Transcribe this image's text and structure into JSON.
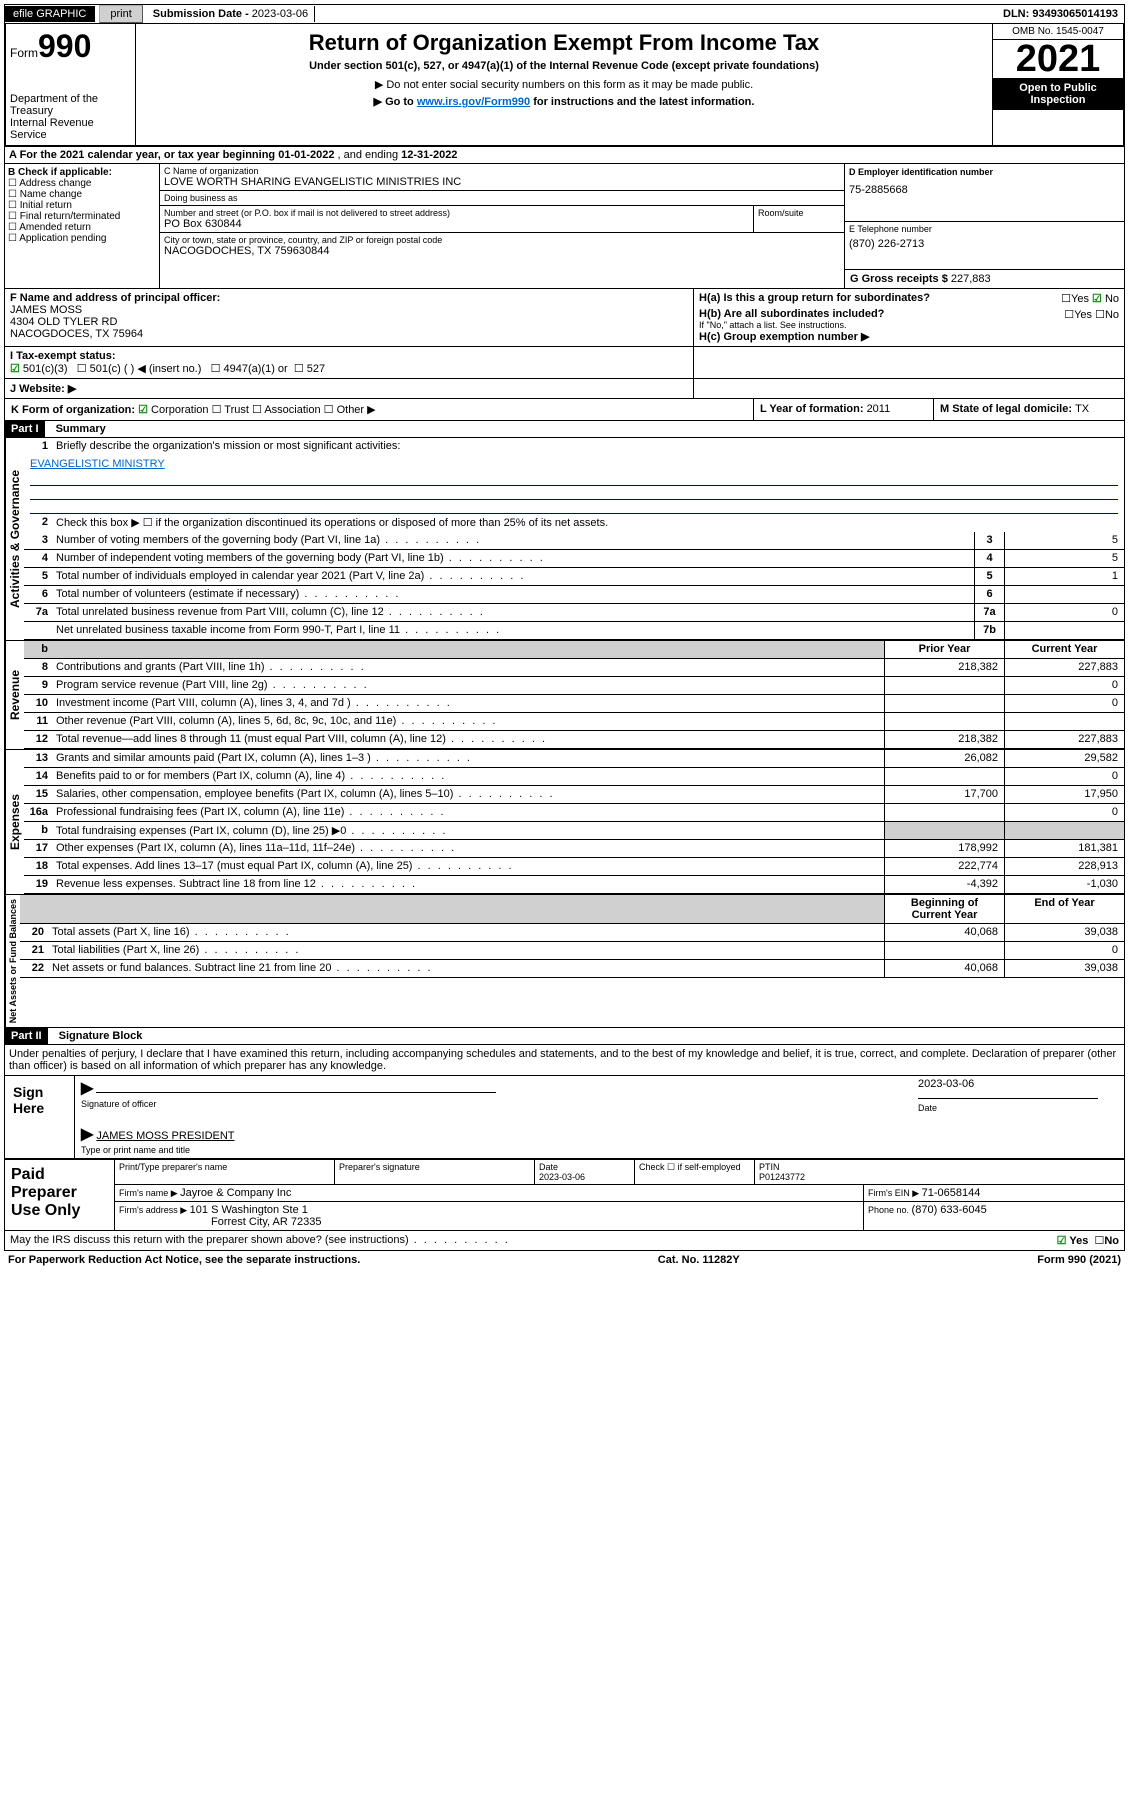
{
  "topbar": {
    "efile": "efile GRAPHIC",
    "print": "print",
    "sub_label": "Submission Date - ",
    "sub_date": "2023-03-06",
    "dln": "DLN: 93493065014193"
  },
  "head": {
    "form_word": "Form",
    "form_no": "990",
    "dept": "Department of the Treasury",
    "irs": "Internal Revenue Service",
    "title": "Return of Organization Exempt From Income Tax",
    "subtitle": "Under section 501(c), 527, or 4947(a)(1) of the Internal Revenue Code (except private foundations)",
    "note1": "▶ Do not enter social security numbers on this form as it may be made public.",
    "note2_a": "▶ Go to ",
    "note2_link": "www.irs.gov/Form990",
    "note2_b": " for instructions and the latest information.",
    "omb": "OMB No. 1545-0047",
    "year": "2021",
    "inspection": "Open to Public Inspection"
  },
  "period": {
    "text_a": "A For the 2021 calendar year, or tax year beginning ",
    "begin": "01-01-2022",
    "text_b": " , and ending ",
    "end": "12-31-2022"
  },
  "sectionB": {
    "header": "B Check if applicable:",
    "opts": [
      "Address change",
      "Name change",
      "Initial return",
      "Final return/terminated",
      "Amended return",
      "Application pending"
    ]
  },
  "sectionC": {
    "lbl_name": "C Name of organization",
    "org": "LOVE WORTH SHARING EVANGELISTIC MINISTRIES INC",
    "dba_lbl": "Doing business as",
    "dba": "",
    "addr_lbl": "Number and street (or P.O. box if mail is not delivered to street address)",
    "room_lbl": "Room/suite",
    "addr": "PO Box 630844",
    "city_lbl": "City or town, state or province, country, and ZIP or foreign postal code",
    "city": "NACOGDOCHES, TX  759630844"
  },
  "sectionD": {
    "lbl": "D Employer identification number",
    "val": "75-2885668"
  },
  "sectionE": {
    "lbl": "E Telephone number",
    "val": "(870) 226-2713"
  },
  "sectionG": {
    "lbl": "G Gross receipts $ ",
    "val": "227,883"
  },
  "sectionF": {
    "lbl": "F Name and address of principal officer:",
    "name": "JAMES MOSS",
    "addr1": "4304 OLD TYLER RD",
    "addr2": "NACOGDOCES, TX  75964"
  },
  "sectionH": {
    "h_a": "H(a)  Is this a group return for subordinates?",
    "h_b": "H(b)  Are all subordinates included?",
    "h_b_note": "If \"No,\" attach a list. See instructions.",
    "h_c": "H(c)  Group exemption number ▶",
    "yes": "Yes",
    "no": "No"
  },
  "sectionI": {
    "lbl": "I   Tax-exempt status:",
    "o1": "501(c)(3)",
    "o2": "501(c) (  ) ◀ (insert no.)",
    "o3": "4947(a)(1) or",
    "o4": "527"
  },
  "sectionJ": {
    "lbl": "J   Website: ▶"
  },
  "sectionK": {
    "lbl": "K Form of organization:",
    "o1": "Corporation",
    "o2": "Trust",
    "o3": "Association",
    "o4": "Other ▶"
  },
  "sectionL": {
    "lbl": "L Year of formation: ",
    "val": "2011"
  },
  "sectionM": {
    "lbl": "M State of legal domicile: ",
    "val": "TX"
  },
  "part1": {
    "bar": "Part I",
    "title": "Summary",
    "q1": "Briefly describe the organization's mission or most significant activities:",
    "mission": "EVANGELISTIC MINISTRY",
    "q2": "Check this box ▶ ☐  if the organization discontinued its operations or disposed of more than 25% of its net assets.",
    "col_prior": "Prior Year",
    "col_curr": "Current Year",
    "col_begin": "Beginning of Current Year",
    "col_end": "End of Year"
  },
  "side": {
    "s1": "Activities & Governance",
    "s2": "Revenue",
    "s3": "Expenses",
    "s4": "Net Assets or Fund Balances"
  },
  "lines_gov": [
    {
      "n": "3",
      "t": "Number of voting members of the governing body (Part VI, line 1a)",
      "box": "3",
      "v": "5"
    },
    {
      "n": "4",
      "t": "Number of independent voting members of the governing body (Part VI, line 1b)",
      "box": "4",
      "v": "5"
    },
    {
      "n": "5",
      "t": "Total number of individuals employed in calendar year 2021 (Part V, line 2a)",
      "box": "5",
      "v": "1"
    },
    {
      "n": "6",
      "t": "Total number of volunteers (estimate if necessary)",
      "box": "6",
      "v": ""
    },
    {
      "n": "7a",
      "t": "Total unrelated business revenue from Part VIII, column (C), line 12",
      "box": "7a",
      "v": "0"
    },
    {
      "n": "",
      "t": "Net unrelated business taxable income from Form 990-T, Part I, line 11",
      "box": "7b",
      "v": ""
    }
  ],
  "lines_rev": [
    {
      "n": "8",
      "t": "Contributions and grants (Part VIII, line 1h)",
      "p": "218,382",
      "c": "227,883"
    },
    {
      "n": "9",
      "t": "Program service revenue (Part VIII, line 2g)",
      "p": "",
      "c": "0"
    },
    {
      "n": "10",
      "t": "Investment income (Part VIII, column (A), lines 3, 4, and 7d )",
      "p": "",
      "c": "0"
    },
    {
      "n": "11",
      "t": "Other revenue (Part VIII, column (A), lines 5, 6d, 8c, 9c, 10c, and 11e)",
      "p": "",
      "c": ""
    },
    {
      "n": "12",
      "t": "Total revenue—add lines 8 through 11 (must equal Part VIII, column (A), line 12)",
      "p": "218,382",
      "c": "227,883"
    }
  ],
  "lines_exp": [
    {
      "n": "13",
      "t": "Grants and similar amounts paid (Part IX, column (A), lines 1–3 )",
      "p": "26,082",
      "c": "29,582"
    },
    {
      "n": "14",
      "t": "Benefits paid to or for members (Part IX, column (A), line 4)",
      "p": "",
      "c": "0"
    },
    {
      "n": "15",
      "t": "Salaries, other compensation, employee benefits (Part IX, column (A), lines 5–10)",
      "p": "17,700",
      "c": "17,950"
    },
    {
      "n": "16a",
      "t": "Professional fundraising fees (Part IX, column (A), line 11e)",
      "p": "",
      "c": "0"
    },
    {
      "n": "b",
      "t": "Total fundraising expenses (Part IX, column (D), line 25) ▶0",
      "p": "__GRAY__",
      "c": "__GRAY__"
    },
    {
      "n": "17",
      "t": "Other expenses (Part IX, column (A), lines 11a–11d, 11f–24e)",
      "p": "178,992",
      "c": "181,381"
    },
    {
      "n": "18",
      "t": "Total expenses. Add lines 13–17 (must equal Part IX, column (A), line 25)",
      "p": "222,774",
      "c": "228,913"
    },
    {
      "n": "19",
      "t": "Revenue less expenses. Subtract line 18 from line 12",
      "p": "-4,392",
      "c": "-1,030"
    }
  ],
  "lines_net": [
    {
      "n": "20",
      "t": "Total assets (Part X, line 16)",
      "p": "40,068",
      "c": "39,038"
    },
    {
      "n": "21",
      "t": "Total liabilities (Part X, line 26)",
      "p": "",
      "c": "0"
    },
    {
      "n": "22",
      "t": "Net assets or fund balances. Subtract line 21 from line 20",
      "p": "40,068",
      "c": "39,038"
    }
  ],
  "part2": {
    "bar": "Part II",
    "title": "Signature Block",
    "decl": "Under penalties of perjury, I declare that I have examined this return, including accompanying schedules and statements, and to the best of my knowledge and belief, it is true, correct, and complete. Declaration of preparer (other than officer) is based on all information of which preparer has any knowledge."
  },
  "sign": {
    "side": "Sign Here",
    "officer_lbl": "Signature of officer",
    "date_lbl": "Date",
    "date": "2023-03-06",
    "name": "JAMES MOSS  PRESIDENT",
    "name_lbl": "Type or print name and title"
  },
  "prep": {
    "side": "Paid Preparer Use Only",
    "h_name": "Print/Type preparer's name",
    "h_sig": "Preparer's signature",
    "h_date": "Date",
    "date": "2023-03-06",
    "self": "Check ☐ if self-employed",
    "ptin_lbl": "PTIN",
    "ptin": "P01243772",
    "firm_lbl": "Firm's name    ▶ ",
    "firm": "Jayroe & Company Inc",
    "ein_lbl": "Firm's EIN ▶ ",
    "ein": "71-0658144",
    "addr_lbl": "Firm's address ▶ ",
    "addr1": "101 S Washington Ste 1",
    "addr2": "Forrest City, AR  72335",
    "phone_lbl": "Phone no. ",
    "phone": "(870) 633-6045"
  },
  "discuss": {
    "q": "May the IRS discuss this return with the preparer shown above? (see instructions)",
    "yes": "Yes",
    "no": "No"
  },
  "footer": {
    "left": "For Paperwork Reduction Act Notice, see the separate instructions.",
    "mid": "Cat. No. 11282Y",
    "right": "Form 990 (2021)"
  }
}
